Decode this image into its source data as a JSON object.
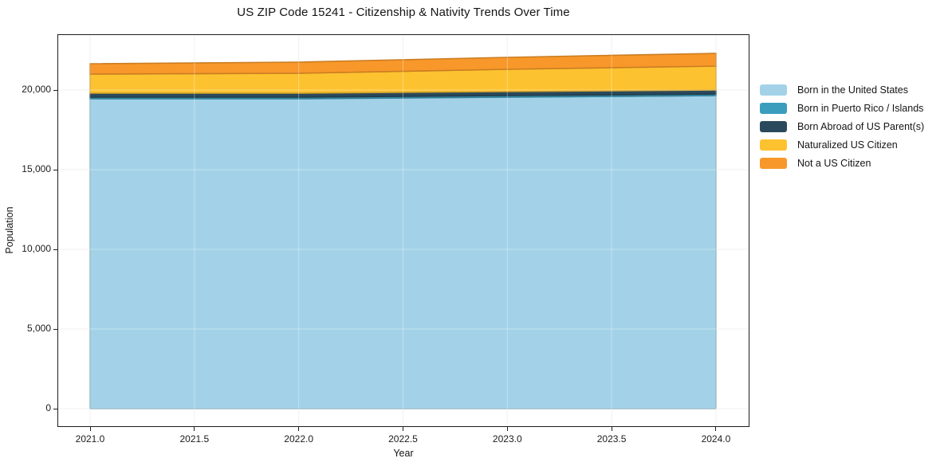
{
  "chart_data": {
    "type": "area",
    "stacked": true,
    "title": "US ZIP Code 15241 - Citizenship & Nativity Trends Over Time",
    "xlabel": "Year",
    "ylabel": "Population",
    "x": [
      2021,
      2022,
      2023,
      2024
    ],
    "series": [
      {
        "name": "Born in the United States",
        "color": "#a3d2e8",
        "values": [
          19450,
          19450,
          19550,
          19650
        ]
      },
      {
        "name": "Born in Puerto Rico / Islands",
        "color": "#3b9dbd",
        "values": [
          100,
          100,
          100,
          100
        ]
      },
      {
        "name": "Born Abroad of US Parent(s)",
        "color": "#2a495c",
        "values": [
          250,
          250,
          250,
          250
        ]
      },
      {
        "name": "Naturalized US Citizen",
        "color": "#fdc230",
        "values": [
          1200,
          1250,
          1400,
          1500
        ]
      },
      {
        "name": "Not a US Citizen",
        "color": "#f8982a",
        "values": [
          650,
          700,
          750,
          800
        ]
      }
    ],
    "totals": [
      21650,
      21750,
      22050,
      22300
    ],
    "x_ticks": {
      "values": [
        2021,
        2021.5,
        2022,
        2022.5,
        2023,
        2023.5,
        2024
      ],
      "labels": [
        "2021.0",
        "2021.5",
        "2022.0",
        "2022.5",
        "2023.0",
        "2023.5",
        "2024.0"
      ]
    },
    "y_ticks": {
      "values": [
        0,
        5000,
        10000,
        15000,
        20000
      ],
      "labels": [
        "0",
        "5,000",
        "10,000",
        "15,000",
        "20,000"
      ]
    },
    "xlim": [
      2020.847,
      2024.157
    ],
    "ylim": [
      -1100,
      23450
    ],
    "grid": true,
    "legend_position": "right-outside"
  },
  "colors": {
    "grid_under": "#ebebeb",
    "grid_over": "rgba(255,255,255,0.35)",
    "frame": "#1c1c1c",
    "background": "#ffffff"
  }
}
